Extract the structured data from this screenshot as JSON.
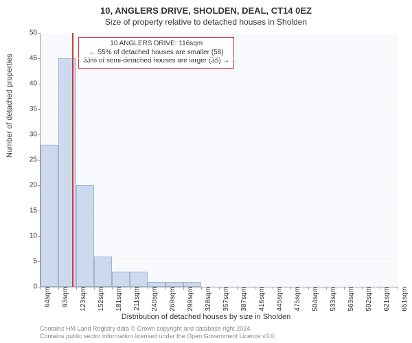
{
  "title_main": "10, ANGLERS DRIVE, SHOLDEN, DEAL, CT14 0EZ",
  "title_sub": "Size of property relative to detached houses in Sholden",
  "y_axis_label": "Number of detached properties",
  "x_axis_label": "Distribution of detached houses by size in Sholden",
  "attribution_line1": "Contains HM Land Registry data © Crown copyright and database right 2024.",
  "attribution_line2": "Contains public sector information licensed under the Open Government Licence v3.0.",
  "chart": {
    "type": "histogram",
    "background_color": "#f7f9fc",
    "grid_color": "#ffffff",
    "axis_color": "#999999",
    "bar_fill": "#cdd9ed",
    "bar_stroke": "#9db3d4",
    "marker_color": "#d93333",
    "y_min": 0,
    "y_max": 50,
    "y_step": 5,
    "x_ticks": [
      "64sqm",
      "93sqm",
      "123sqm",
      "152sqm",
      "181sqm",
      "211sqm",
      "240sqm",
      "269sqm",
      "299sqm",
      "328sqm",
      "357sqm",
      "387sqm",
      "416sqm",
      "445sqm",
      "475sqm",
      "504sqm",
      "533sqm",
      "563sqm",
      "592sqm",
      "621sqm",
      "651sqm"
    ],
    "bars": [
      28,
      45,
      20,
      6,
      3,
      3,
      1,
      1,
      1,
      0,
      0,
      0,
      0,
      0,
      0,
      0,
      0,
      0,
      0,
      0
    ],
    "marker_position": 116,
    "x_data_min": 64,
    "x_data_max": 651,
    "annotation": {
      "line1": "10 ANGLERS DRIVE: 116sqm",
      "line2": "← 55% of detached houses are smaller (58)",
      "line3": "33% of semi-detached houses are larger (35) →"
    }
  }
}
